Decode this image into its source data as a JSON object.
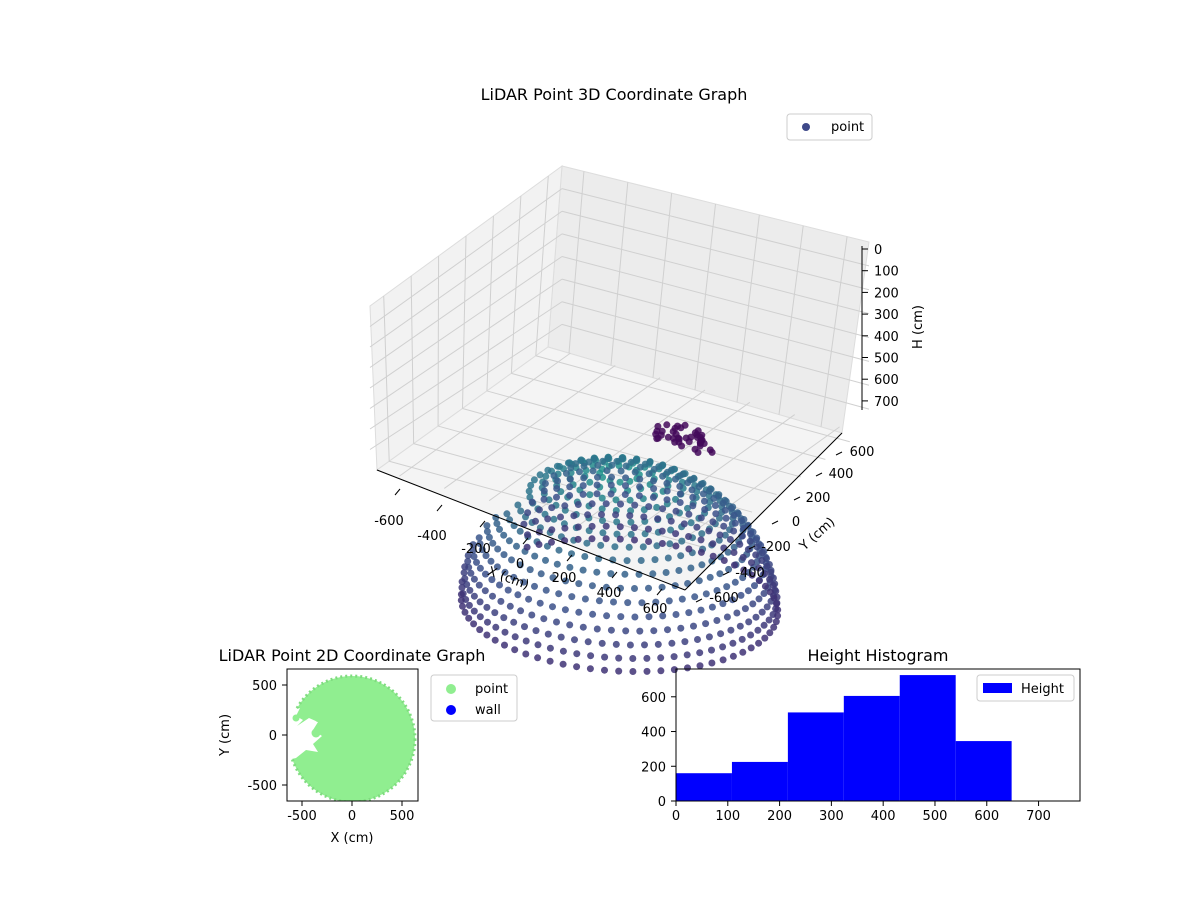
{
  "colors": {
    "point_3d_start": "#440154",
    "point_3d_mid": "#3b528b",
    "point_3d_end": "#21918c",
    "legend_point": "#3e4989",
    "point_2d": "#90ee90",
    "wall_2d": "#0000ff",
    "histogram": "#0000ff"
  },
  "chart_data": [
    {
      "type": "scatter",
      "projection": "3d",
      "title": "LiDAR Point 3D Coordinate Graph",
      "xlabel": "X (cm)",
      "ylabel": "Y (cm)",
      "zlabel": "H (cm)",
      "xlim": [
        -700,
        700
      ],
      "ylim": [
        -700,
        700
      ],
      "zlim": [
        750,
        0
      ],
      "z_inverted": true,
      "xticks": [
        "-600",
        "-400",
        "-200",
        "0",
        "200",
        "400",
        "600"
      ],
      "yticks": [
        "-600",
        "-400",
        "-200",
        "0",
        "200",
        "400",
        "600"
      ],
      "zticks": [
        "0",
        "100",
        "200",
        "300",
        "400",
        "500",
        "600",
        "700"
      ],
      "legend": [
        {
          "label": "point",
          "color": "#3e4989"
        }
      ],
      "legend_position": "top-right",
      "grid": true,
      "series": [
        {
          "name": "point",
          "colormap": "viridis",
          "shape": "hemispherical dome of rings, radius ~600 cm, cluster near (0, 600), gap around (-450, 0)"
        }
      ]
    },
    {
      "type": "scatter",
      "title": "LiDAR Point 2D Coordinate Graph",
      "xlabel": "X (cm)",
      "ylabel": "Y (cm)",
      "xlim": [
        -650,
        650
      ],
      "ylim": [
        -670,
        650
      ],
      "xticks": [
        -500,
        0,
        500
      ],
      "yticks": [
        -500,
        0,
        500
      ],
      "legend_position": "outside right",
      "series": [
        {
          "name": "point",
          "color": "#90ee90",
          "shape": "filled disc radius ~620 cm with notch near x=-450"
        },
        {
          "name": "wall",
          "color": "#0000ff",
          "points": []
        }
      ]
    },
    {
      "type": "bar",
      "title": "Height Histogram",
      "xlim": [
        0,
        780
      ],
      "ylim": [
        0,
        760
      ],
      "xticks": [
        0,
        100,
        200,
        300,
        400,
        500,
        600,
        700
      ],
      "yticks": [
        0,
        200,
        400,
        600
      ],
      "legend_position": "upper right",
      "series": [
        {
          "name": "Height",
          "color": "#0000ff",
          "bins": [
            {
              "x0": 0,
              "x1": 108,
              "count": 160
            },
            {
              "x0": 108,
              "x1": 216,
              "count": 225
            },
            {
              "x0": 216,
              "x1": 324,
              "count": 510
            },
            {
              "x0": 324,
              "x1": 432,
              "count": 605
            },
            {
              "x0": 432,
              "x1": 540,
              "count": 725
            },
            {
              "x0": 540,
              "x1": 648,
              "count": 345
            }
          ]
        }
      ]
    }
  ]
}
